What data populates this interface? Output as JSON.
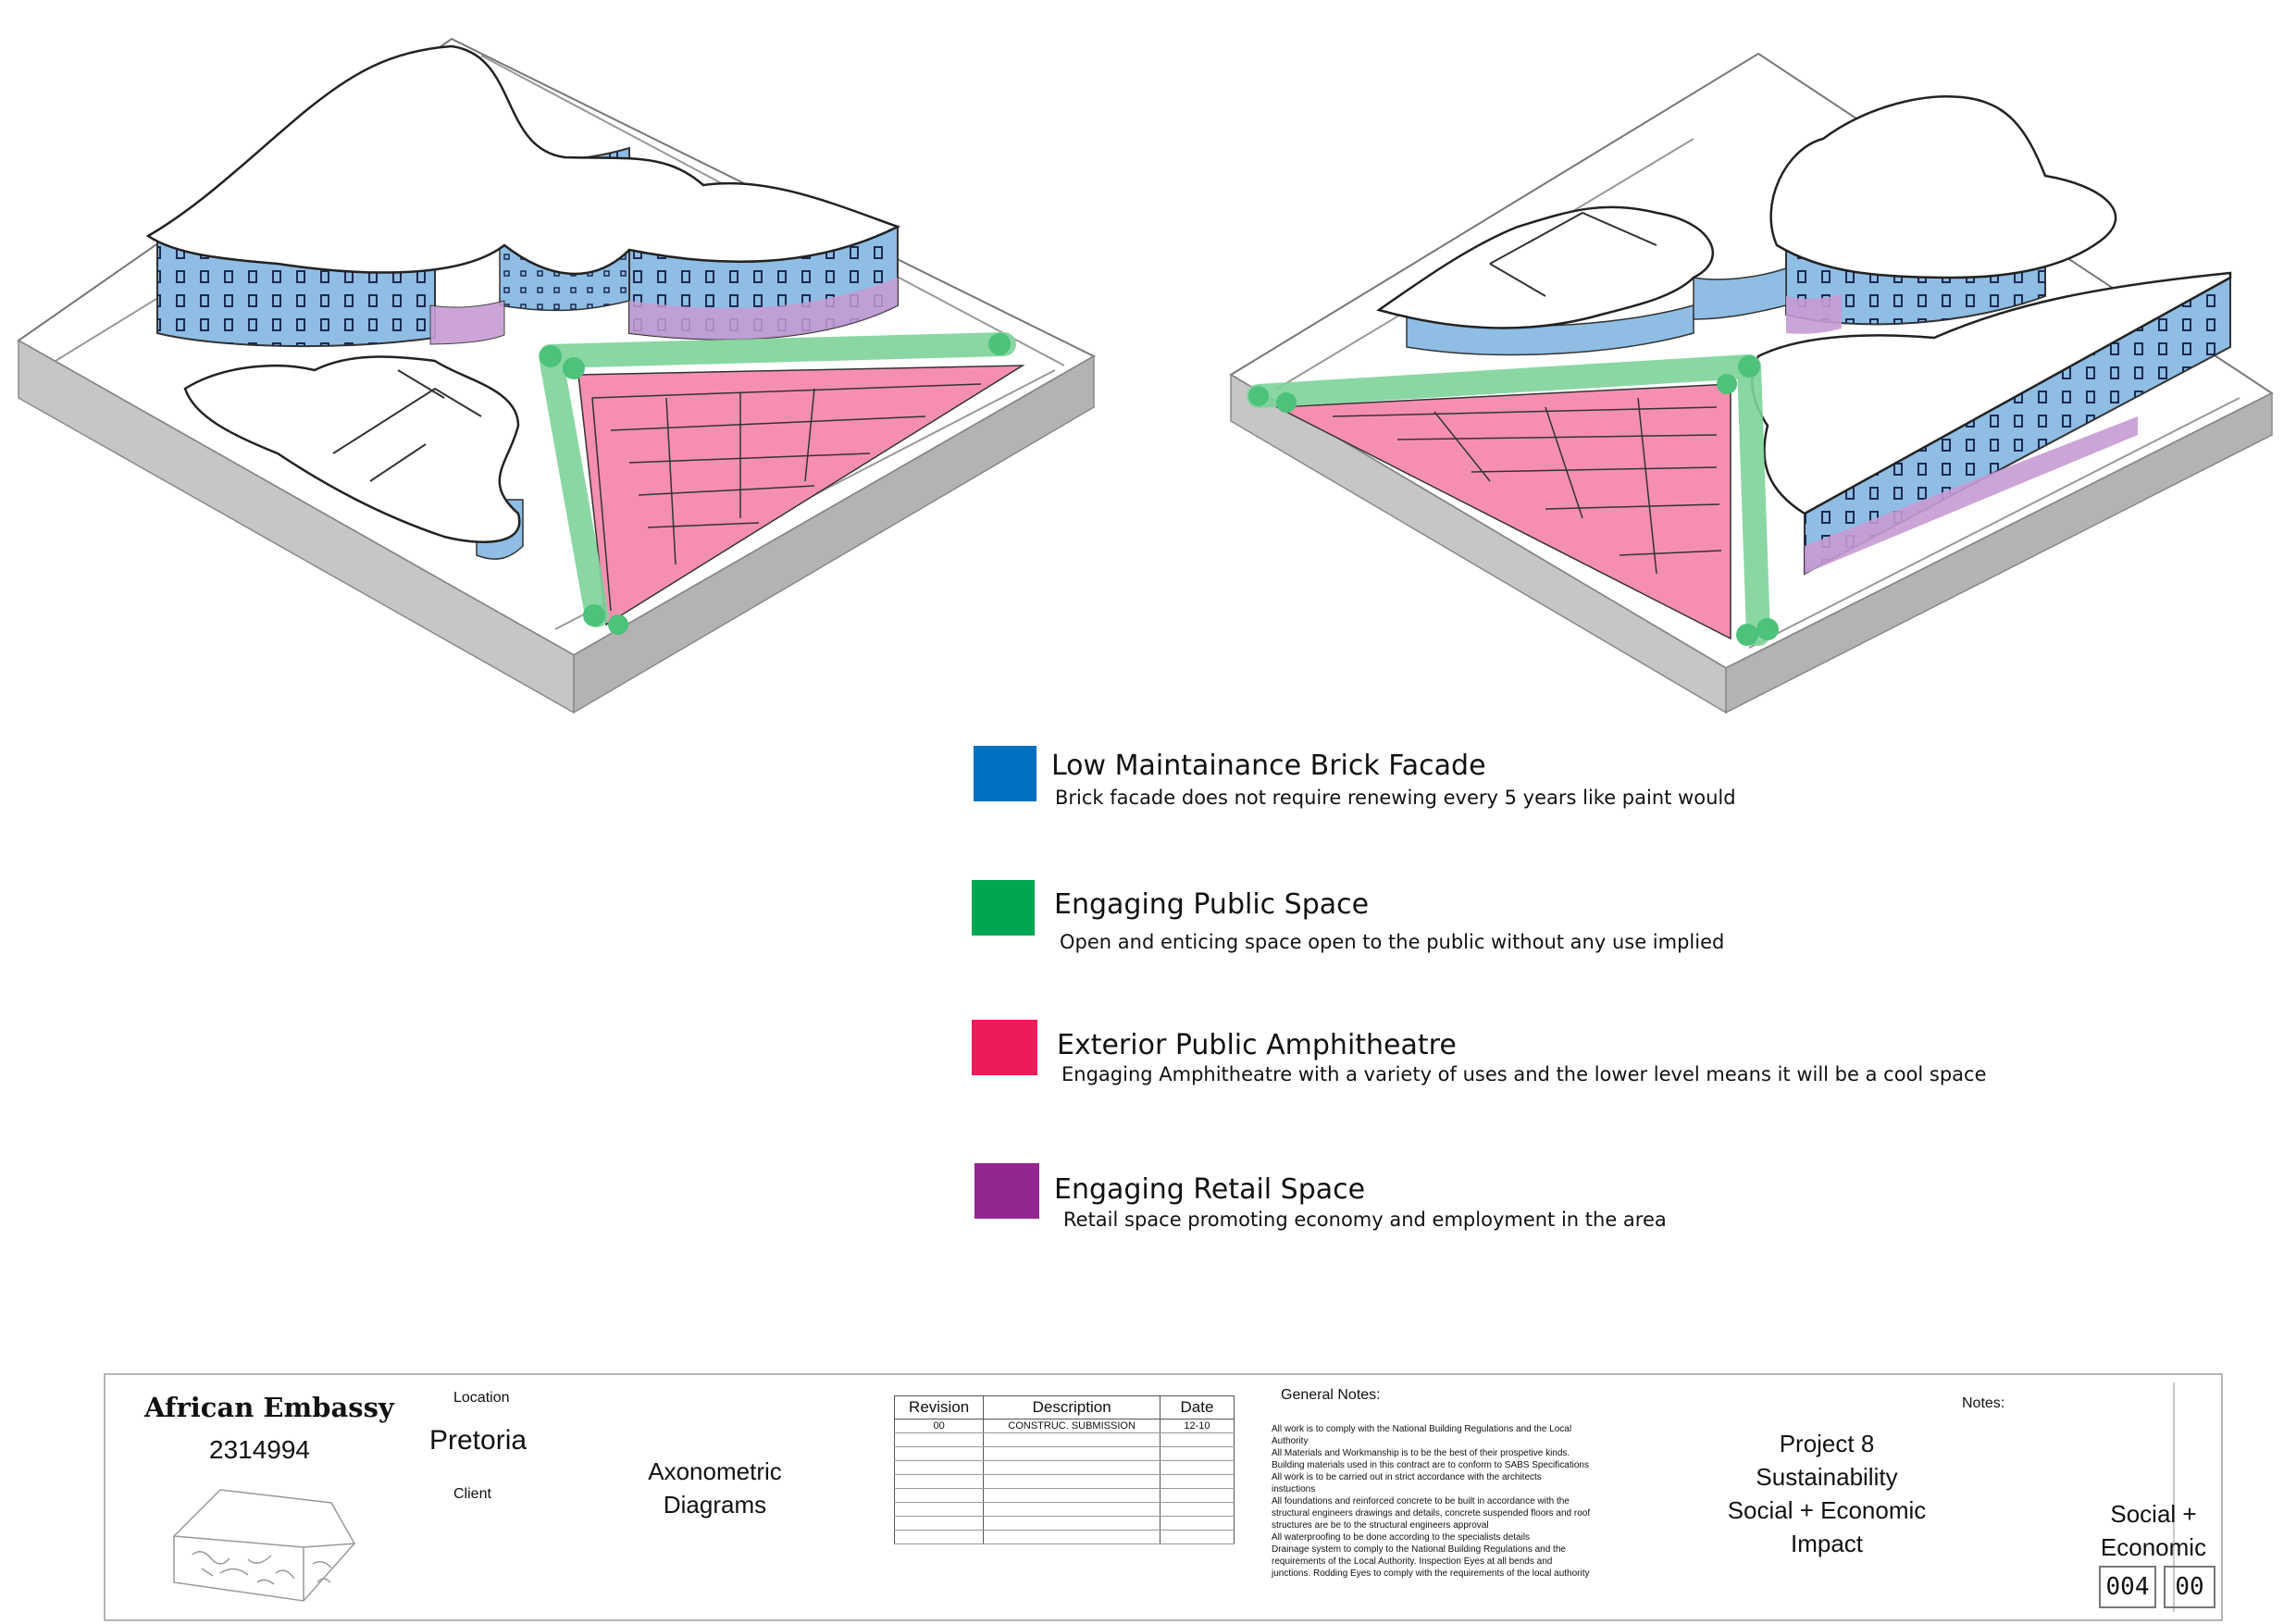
{
  "colors": {
    "brick_facade": "#0070C0",
    "public_space": "#00A651",
    "amphitheatre": "#ED1B5A",
    "retail": "#92278F",
    "facade_tint": "#8fbde3",
    "green_tint": "#7dd39a",
    "pink_tint": "#f58fb0",
    "purple_tint": "#c79bd4"
  },
  "legend": [
    {
      "title": "Low Maintainance Brick Facade",
      "description": "Brick facade does not require renewing every 5 years like paint would",
      "color_key": "brick_facade"
    },
    {
      "title": "Engaging Public Space",
      "description": "Open and enticing space open to the public without any use implied",
      "color_key": "public_space"
    },
    {
      "title": "Exterior Public Amphitheatre",
      "description": "Engaging Amphitheatre with a variety of uses and the lower level means it will be a cool space",
      "color_key": "amphitheatre"
    },
    {
      "title": "Engaging Retail Space",
      "description": "Retail space promoting economy and employment in the area",
      "color_key": "retail"
    }
  ],
  "title_block": {
    "project_name": "African Embassy",
    "project_number": "2314994",
    "location_label": "Location",
    "location": "Pretoria",
    "client_label": "Client",
    "drawing_title_line1": "Axonometric",
    "drawing_title_line2": "Diagrams",
    "revision_table": {
      "headers": [
        "Revision",
        "Description",
        "Date"
      ],
      "rows": [
        [
          "00",
          "CONSTRUC. SUBMISSION",
          "12-10"
        ],
        [
          "",
          "",
          ""
        ],
        [
          "",
          "",
          ""
        ],
        [
          "",
          "",
          ""
        ],
        [
          "",
          "",
          ""
        ],
        [
          "",
          "",
          ""
        ],
        [
          "",
          "",
          ""
        ],
        [
          "",
          "",
          ""
        ],
        [
          "",
          "",
          ""
        ]
      ]
    },
    "general_notes_title": "General Notes:",
    "general_notes": [
      "All work is to comply with the National Building Regulations and the Local",
      "Authority",
      "All Materials and Workmanship is to be the best of their prospetive kinds.",
      "Building materials used in this contract are to conform to SABS Specifications",
      "All work is to be carried out in strict accordance with the architects",
      "instuctions",
      "All foundations and reinforced concrete to be built in accordance with the",
      "structural engineers drawings and details, concrete suspended floors and roof",
      "structures are be to the structural engineers approval",
      "All waterproofing to be done according to the specialists details",
      "Drainage system to comply to the National Building Regulations and the",
      "requirements of the Local Authority. Inspection Eyes at all bends and",
      "junctions. Rodding Eyes to comply with the requirements of the local authority"
    ],
    "project_lines": [
      "Project 8",
      "Sustainability",
      "Social + Economic",
      "Impact"
    ],
    "notes_label": "Notes:",
    "sheet_title_line1": "Social +",
    "sheet_title_line2": "Economic",
    "sheet_number": "004",
    "sheet_revision": "00"
  }
}
